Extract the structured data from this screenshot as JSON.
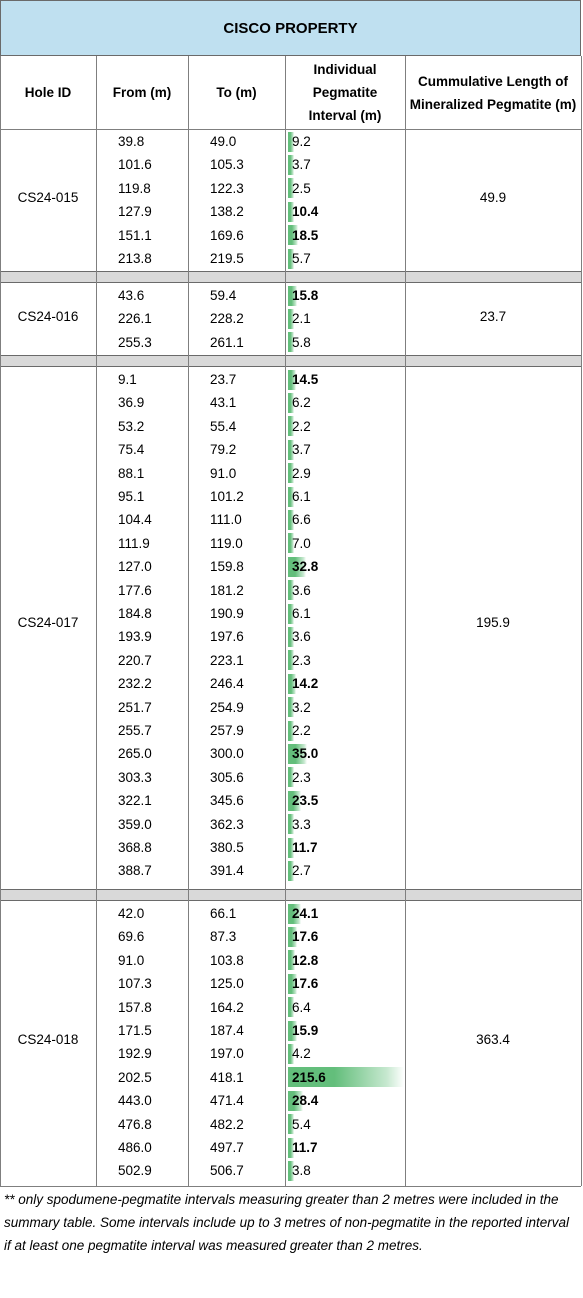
{
  "title": "CISCO PROPERTY",
  "headers": {
    "hole_id": "Hole ID",
    "from": "From (m)",
    "to": "To (m)",
    "interval": "Individual Pegmatite Interval (m)",
    "cumulative": "Cummulative Length of Mineralized Pegmatite (m)"
  },
  "colors": {
    "title_bg": "#bfe0f0",
    "bar": "#63be7b",
    "separator": "#d9d9d9"
  },
  "holes": [
    {
      "id": "CS24-015",
      "cumulative": "49.9",
      "rows": [
        {
          "from": "39.8",
          "to": "49.0",
          "interval": "9.2"
        },
        {
          "from": "101.6",
          "to": "105.3",
          "interval": "3.7"
        },
        {
          "from": "119.8",
          "to": "122.3",
          "interval": "2.5"
        },
        {
          "from": "127.9",
          "to": "138.2",
          "interval": "10.4"
        },
        {
          "from": "151.1",
          "to": "169.6",
          "interval": "18.5"
        },
        {
          "from": "213.8",
          "to": "219.5",
          "interval": "5.7"
        }
      ]
    },
    {
      "id": "CS24-016",
      "cumulative": "23.7",
      "rows": [
        {
          "from": "43.6",
          "to": "59.4",
          "interval": "15.8"
        },
        {
          "from": "226.1",
          "to": "228.2",
          "interval": "2.1"
        },
        {
          "from": "255.3",
          "to": "261.1",
          "interval": "5.8"
        }
      ]
    },
    {
      "id": "CS24-017",
      "cumulative": "195.9",
      "rows": [
        {
          "from": "9.1",
          "to": "23.7",
          "interval": "14.5"
        },
        {
          "from": "36.9",
          "to": "43.1",
          "interval": "6.2"
        },
        {
          "from": "53.2",
          "to": "55.4",
          "interval": "2.2"
        },
        {
          "from": "75.4",
          "to": "79.2",
          "interval": "3.7"
        },
        {
          "from": "88.1",
          "to": "91.0",
          "interval": "2.9"
        },
        {
          "from": "95.1",
          "to": "101.2",
          "interval": "6.1"
        },
        {
          "from": "104.4",
          "to": "111.0",
          "interval": "6.6"
        },
        {
          "from": "111.9",
          "to": "119.0",
          "interval": "7.0"
        },
        {
          "from": "127.0",
          "to": "159.8",
          "interval": "32.8"
        },
        {
          "from": "177.6",
          "to": "181.2",
          "interval": "3.6"
        },
        {
          "from": "184.8",
          "to": "190.9",
          "interval": "6.1"
        },
        {
          "from": "193.9",
          "to": "197.6",
          "interval": "3.6"
        },
        {
          "from": "220.7",
          "to": "223.1",
          "interval": "2.3"
        },
        {
          "from": "232.2",
          "to": "246.4",
          "interval": "14.2"
        },
        {
          "from": "251.7",
          "to": "254.9",
          "interval": "3.2"
        },
        {
          "from": "255.7",
          "to": "257.9",
          "interval": "2.2"
        },
        {
          "from": "265.0",
          "to": "300.0",
          "interval": "35.0"
        },
        {
          "from": "303.3",
          "to": "305.6",
          "interval": "2.3"
        },
        {
          "from": "322.1",
          "to": "345.6",
          "interval": "23.5"
        },
        {
          "from": "359.0",
          "to": "362.3",
          "interval": "3.3"
        },
        {
          "from": "368.8",
          "to": "380.5",
          "interval": "11.7"
        },
        {
          "from": "388.7",
          "to": "391.4",
          "interval": "2.7"
        }
      ]
    },
    {
      "id": "CS24-018",
      "cumulative": "363.4",
      "rows": [
        {
          "from": "42.0",
          "to": "66.1",
          "interval": "24.1"
        },
        {
          "from": "69.6",
          "to": "87.3",
          "interval": "17.6"
        },
        {
          "from": "91.0",
          "to": "103.8",
          "interval": "12.8"
        },
        {
          "from": "107.3",
          "to": "125.0",
          "interval": "17.6"
        },
        {
          "from": "157.8",
          "to": "164.2",
          "interval": "6.4"
        },
        {
          "from": "171.5",
          "to": "187.4",
          "interval": "15.9"
        },
        {
          "from": "192.9",
          "to": "197.0",
          "interval": "4.2"
        },
        {
          "from": "202.5",
          "to": "418.1",
          "interval": "215.6"
        },
        {
          "from": "443.0",
          "to": "471.4",
          "interval": "28.4"
        },
        {
          "from": "476.8",
          "to": "482.2",
          "interval": "5.4"
        },
        {
          "from": "486.0",
          "to": "497.7",
          "interval": "11.7"
        },
        {
          "from": "502.9",
          "to": "506.7",
          "interval": "3.8"
        }
      ]
    }
  ],
  "footnote": "** only spodumene-pegmatite intervals measuring greater than 2 metres were included in the summary table.  Some intervals include up to 3 metres of non-pegmatite in the reported interval if at least one pegmatite interval was measured greater than 2 metres."
}
